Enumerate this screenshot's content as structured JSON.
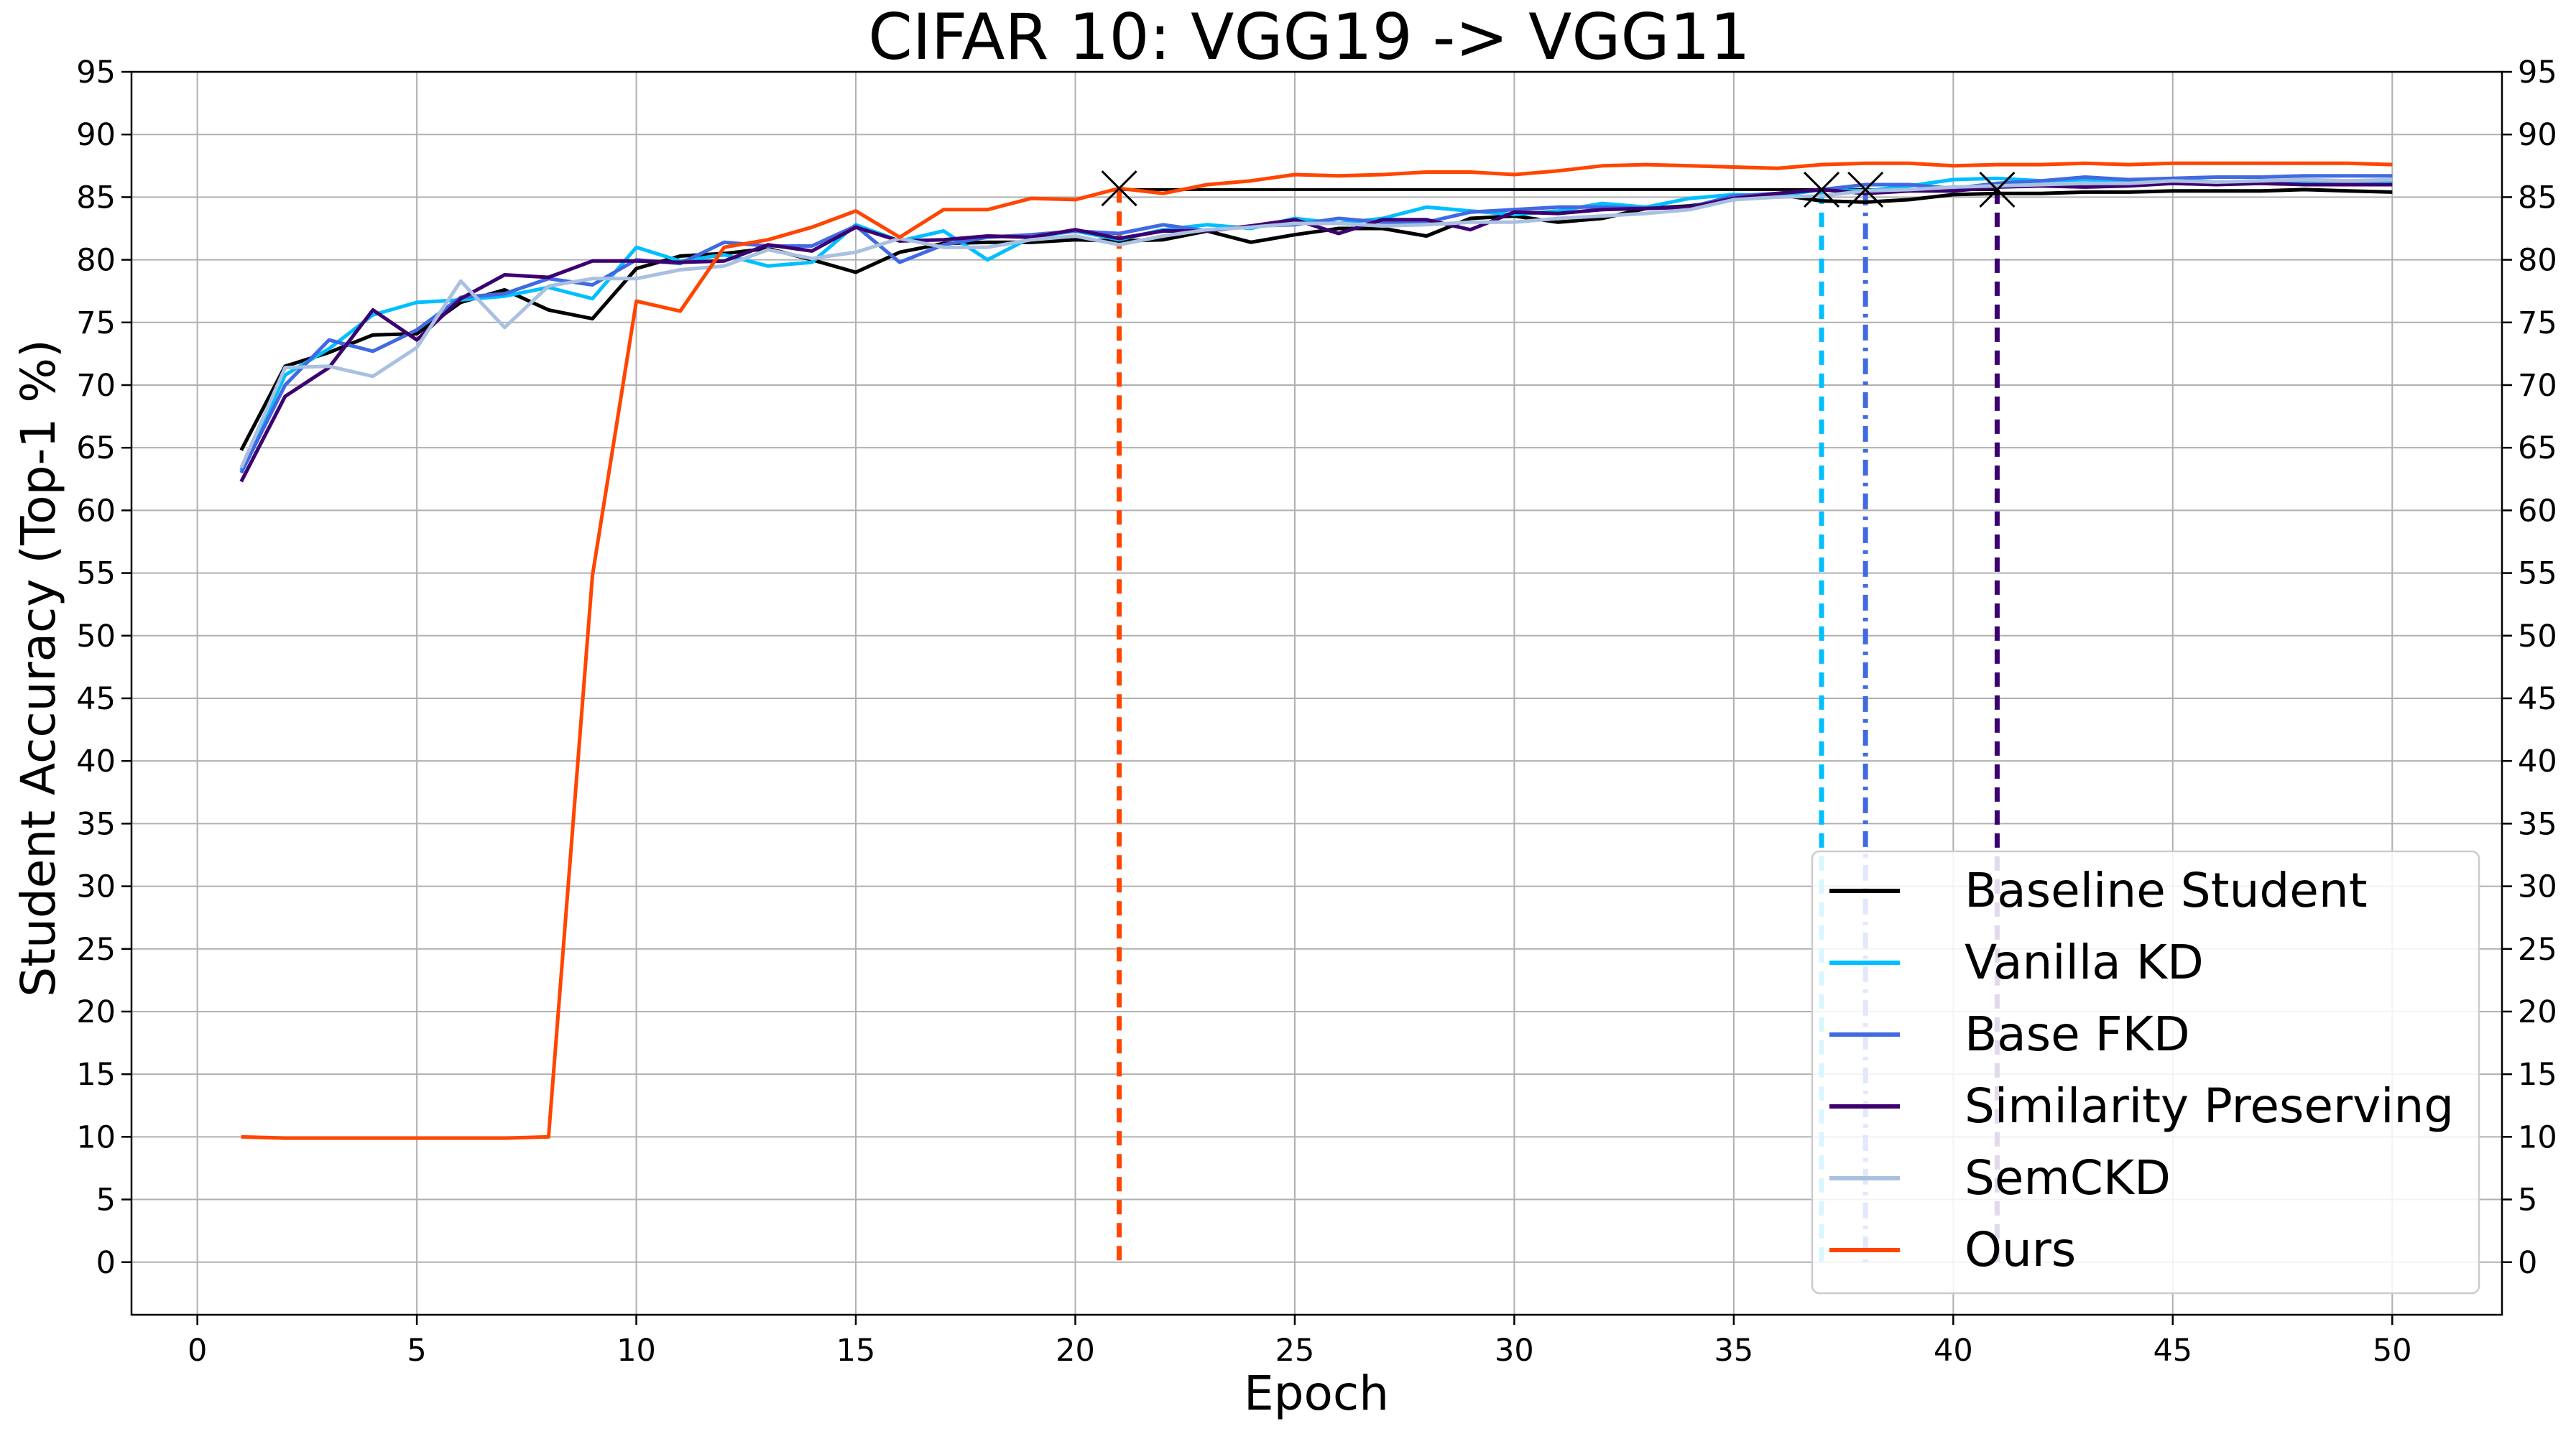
{
  "chart_data": {
    "type": "line",
    "title": "CIFAR 10: VGG19 -> VGG11",
    "xlabel": "Epoch",
    "ylabel": "Student Accuracy (Top-1 %)",
    "xlim": [
      -1.5,
      52.5
    ],
    "ylim": [
      -4.2,
      95
    ],
    "xticks": [
      "0",
      "5",
      "10",
      "15",
      "20",
      "25",
      "30",
      "35",
      "40",
      "45",
      "50"
    ],
    "yticks": [
      "0",
      "5",
      "10",
      "15",
      "20",
      "25",
      "30",
      "35",
      "40",
      "45",
      "50",
      "55",
      "60",
      "65",
      "70",
      "75",
      "80",
      "85",
      "90",
      "95"
    ],
    "grid": true,
    "legend_position": "lower-right",
    "x": [
      1,
      2,
      3,
      4,
      5,
      6,
      7,
      8,
      9,
      10,
      11,
      12,
      13,
      14,
      15,
      16,
      17,
      18,
      19,
      20,
      21,
      22,
      23,
      24,
      25,
      26,
      27,
      28,
      29,
      30,
      31,
      32,
      33,
      34,
      35,
      36,
      37,
      38,
      39,
      40,
      41,
      42,
      43,
      44,
      45,
      46,
      47,
      48,
      49,
      50
    ],
    "series": [
      {
        "name": "Baseline Student",
        "color": "#000000",
        "values": [
          64.8,
          71.5,
          72.6,
          74.0,
          74.1,
          76.6,
          77.6,
          76.0,
          75.3,
          79.3,
          80.3,
          80.5,
          80.9,
          80.0,
          79.0,
          80.6,
          81.3,
          81.4,
          81.4,
          81.6,
          81.5,
          81.6,
          82.3,
          81.4,
          82.0,
          82.5,
          82.5,
          81.9,
          83.3,
          83.5,
          83.0,
          83.3,
          84.1,
          84.3,
          84.8,
          85.2,
          84.7,
          84.6,
          84.8,
          85.2,
          85.3,
          85.3,
          85.4,
          85.4,
          85.5,
          85.5,
          85.5,
          85.6,
          85.5,
          85.4
        ]
      },
      {
        "name": "Vanilla KD",
        "color": "#00bfff",
        "values": [
          63.2,
          70.8,
          72.9,
          75.6,
          76.6,
          76.8,
          77.1,
          77.8,
          76.9,
          81.0,
          79.9,
          80.4,
          79.5,
          79.8,
          82.8,
          81.5,
          82.3,
          80.0,
          81.8,
          82.3,
          81.6,
          82.4,
          82.8,
          82.5,
          83.3,
          82.9,
          83.3,
          84.2,
          83.9,
          83.6,
          83.9,
          84.5,
          84.2,
          84.9,
          85.2,
          85.1,
          85.6,
          85.5,
          85.9,
          86.4,
          86.5,
          86.3,
          86.4,
          86.2,
          86.4,
          86.2,
          86.3,
          86.3,
          86.3,
          86.3
        ]
      },
      {
        "name": "Base FKD",
        "color": "#4169e1",
        "values": [
          63.0,
          70.0,
          73.6,
          72.7,
          74.4,
          77.0,
          77.3,
          78.5,
          78.0,
          80.0,
          79.7,
          81.4,
          81.1,
          81.1,
          82.7,
          79.8,
          81.2,
          81.8,
          82.0,
          82.3,
          82.1,
          82.8,
          82.3,
          82.7,
          82.8,
          83.3,
          83.0,
          83.0,
          83.8,
          84.0,
          84.2,
          84.2,
          84.1,
          84.2,
          85.1,
          85.3,
          85.6,
          86.0,
          86.0,
          85.7,
          86.1,
          86.3,
          86.6,
          86.4,
          86.5,
          86.6,
          86.6,
          86.7,
          86.7,
          86.7
        ]
      },
      {
        "name": "Similarity Preserving",
        "color": "#3d0070",
        "values": [
          62.3,
          69.1,
          71.4,
          76.0,
          73.6,
          76.9,
          78.8,
          78.6,
          79.9,
          79.9,
          79.8,
          79.9,
          81.2,
          80.7,
          82.6,
          81.5,
          81.6,
          81.9,
          81.8,
          82.4,
          81.7,
          82.3,
          82.3,
          82.7,
          83.2,
          82.1,
          83.2,
          83.2,
          82.4,
          83.8,
          83.7,
          84.0,
          84.1,
          84.2,
          84.9,
          85.3,
          85.6,
          85.3,
          85.5,
          85.5,
          85.8,
          85.9,
          85.8,
          85.9,
          86.1,
          86.0,
          86.1,
          86.0,
          86.0,
          86.0
        ]
      },
      {
        "name": "SemCKD",
        "color": "#a9c0e0",
        "values": [
          63.4,
          71.4,
          71.5,
          70.7,
          73.0,
          78.3,
          74.6,
          77.9,
          78.5,
          78.5,
          79.2,
          79.5,
          80.8,
          80.1,
          80.6,
          81.7,
          81.0,
          81.0,
          81.6,
          81.9,
          81.2,
          81.9,
          82.4,
          82.6,
          82.9,
          82.9,
          82.7,
          82.8,
          83.0,
          83.0,
          83.3,
          83.5,
          83.7,
          84.0,
          84.8,
          85.0,
          85.1,
          85.5,
          85.6,
          85.8,
          85.9,
          86.0,
          86.1,
          86.1,
          86.3,
          86.2,
          86.3,
          86.4,
          86.3,
          86.4
        ]
      },
      {
        "name": "Ours",
        "color": "#ff4500",
        "values": [
          10.0,
          9.9,
          9.9,
          9.9,
          9.9,
          9.9,
          9.9,
          10.0,
          54.8,
          76.7,
          75.9,
          81.0,
          81.6,
          82.6,
          83.9,
          81.8,
          84.0,
          84.0,
          84.9,
          84.8,
          85.7,
          85.3,
          86.0,
          86.3,
          86.8,
          86.7,
          86.8,
          87.0,
          87.0,
          86.8,
          87.1,
          87.5,
          87.6,
          87.5,
          87.4,
          87.3,
          87.6,
          87.7,
          87.7,
          87.5,
          87.6,
          87.6,
          87.7,
          87.6,
          87.7,
          87.7,
          87.7,
          87.7,
          87.7,
          87.6
        ]
      }
    ],
    "best_markers": [
      {
        "series": "Ours",
        "epoch": 21,
        "value": 85.7,
        "line_style": "dashed"
      },
      {
        "series": "Vanilla KD",
        "epoch": 37,
        "value": 85.6,
        "line_style": "dashed"
      },
      {
        "series": "Base FKD",
        "epoch": 38,
        "value": 85.6,
        "line_style": "dashdot"
      },
      {
        "series": "Similarity Preserving",
        "epoch": 41,
        "value": 85.6,
        "line_style": "dashed"
      }
    ],
    "baseline_reference": {
      "value": 85.6,
      "color": "#000000"
    }
  }
}
